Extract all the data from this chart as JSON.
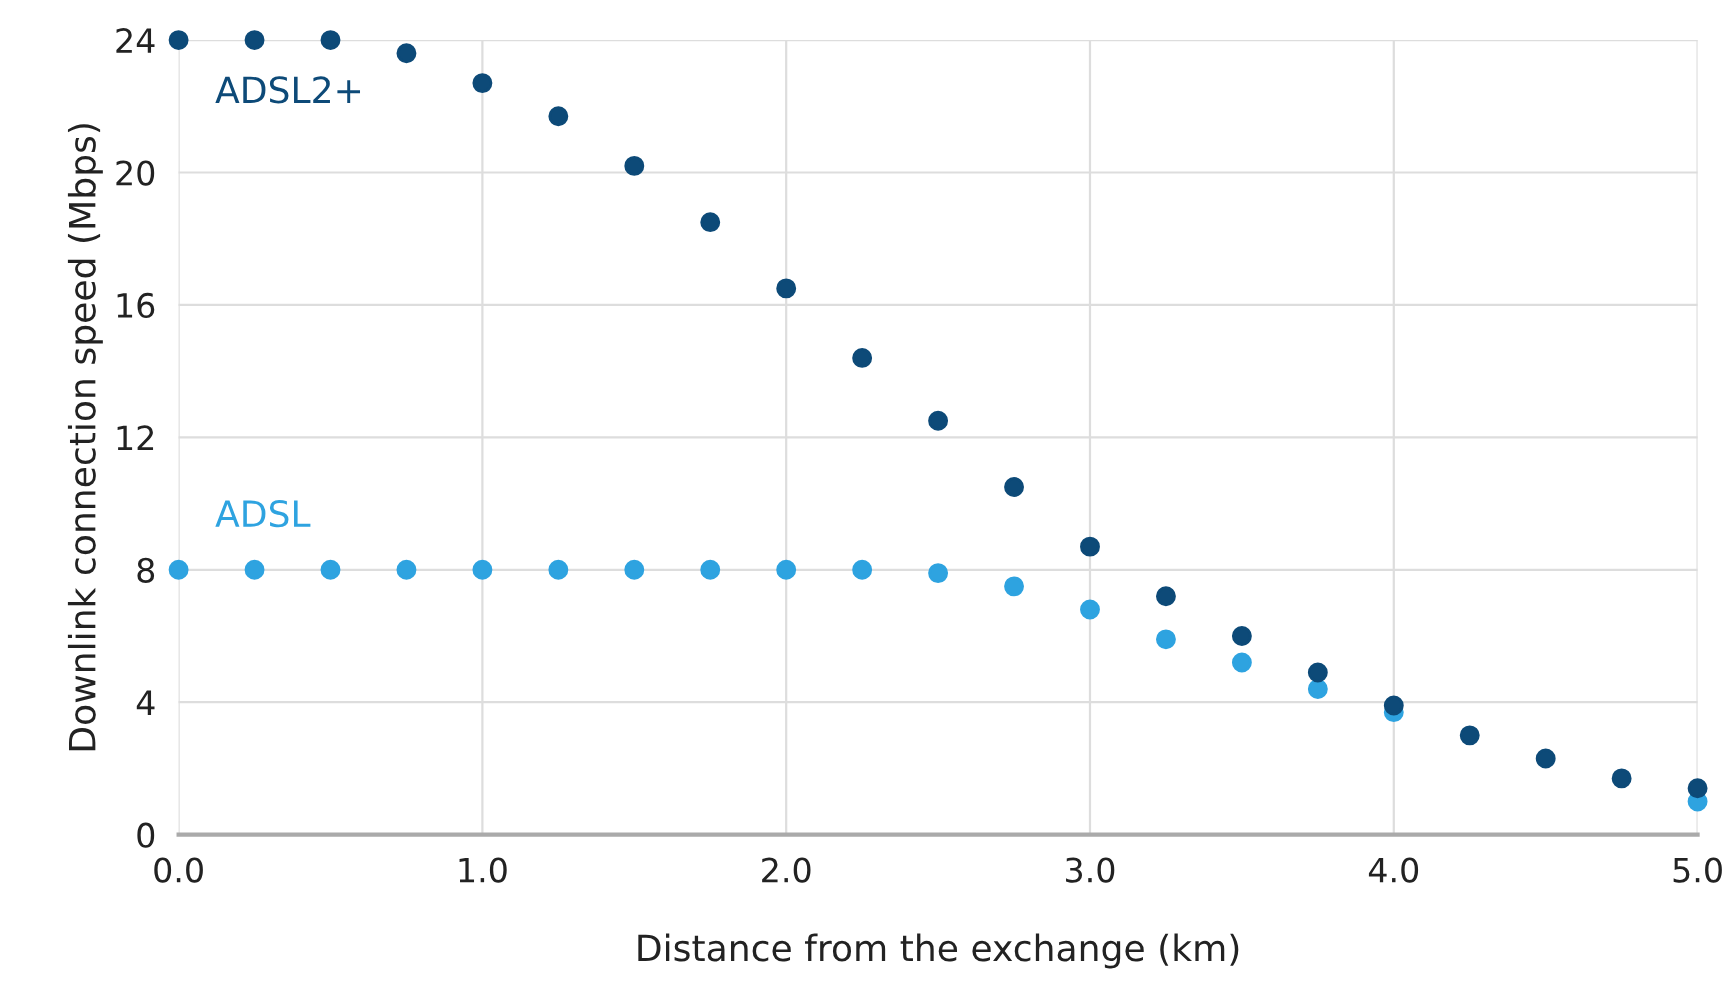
{
  "chart_data": {
    "type": "scatter",
    "xlabel": "Distance from the exchange (km)",
    "ylabel": "Downlink connection speed (Mbps)",
    "x": [
      0,
      0.25,
      0.5,
      0.75,
      1.0,
      1.25,
      1.5,
      1.75,
      2.0,
      2.25,
      2.5,
      2.75,
      3.0,
      3.25,
      3.5,
      3.75,
      4.0,
      4.25,
      4.5,
      4.75,
      5.0
    ],
    "series": [
      {
        "name": "ADSL2+",
        "color": "#0d4a78",
        "values": [
          24,
          24,
          24,
          23.6,
          22.7,
          21.7,
          20.2,
          18.5,
          16.5,
          14.4,
          12.5,
          10.5,
          8.7,
          7.2,
          6.0,
          4.9,
          3.9,
          3.0,
          2.3,
          1.7,
          1.4
        ]
      },
      {
        "name": "ADSL",
        "color": "#2ea3e0",
        "values": [
          8,
          8,
          8,
          8,
          8,
          8,
          8,
          8,
          8,
          8,
          7.9,
          7.5,
          6.8,
          5.9,
          5.2,
          4.4,
          3.7,
          null,
          null,
          null,
          1.0
        ]
      }
    ],
    "xlim": [
      0,
      5
    ],
    "xticks": [
      {
        "value": 0,
        "label": "0.0"
      },
      {
        "value": 1,
        "label": "1.0"
      },
      {
        "value": 2,
        "label": "2.0"
      },
      {
        "value": 3,
        "label": "3.0"
      },
      {
        "value": 4,
        "label": "4.0"
      },
      {
        "value": 5,
        "label": "5.0"
      }
    ],
    "ylim": [
      0,
      24
    ],
    "yticks": [
      0,
      4,
      8,
      12,
      16,
      20,
      24
    ],
    "grid": true,
    "marker": "circle"
  }
}
